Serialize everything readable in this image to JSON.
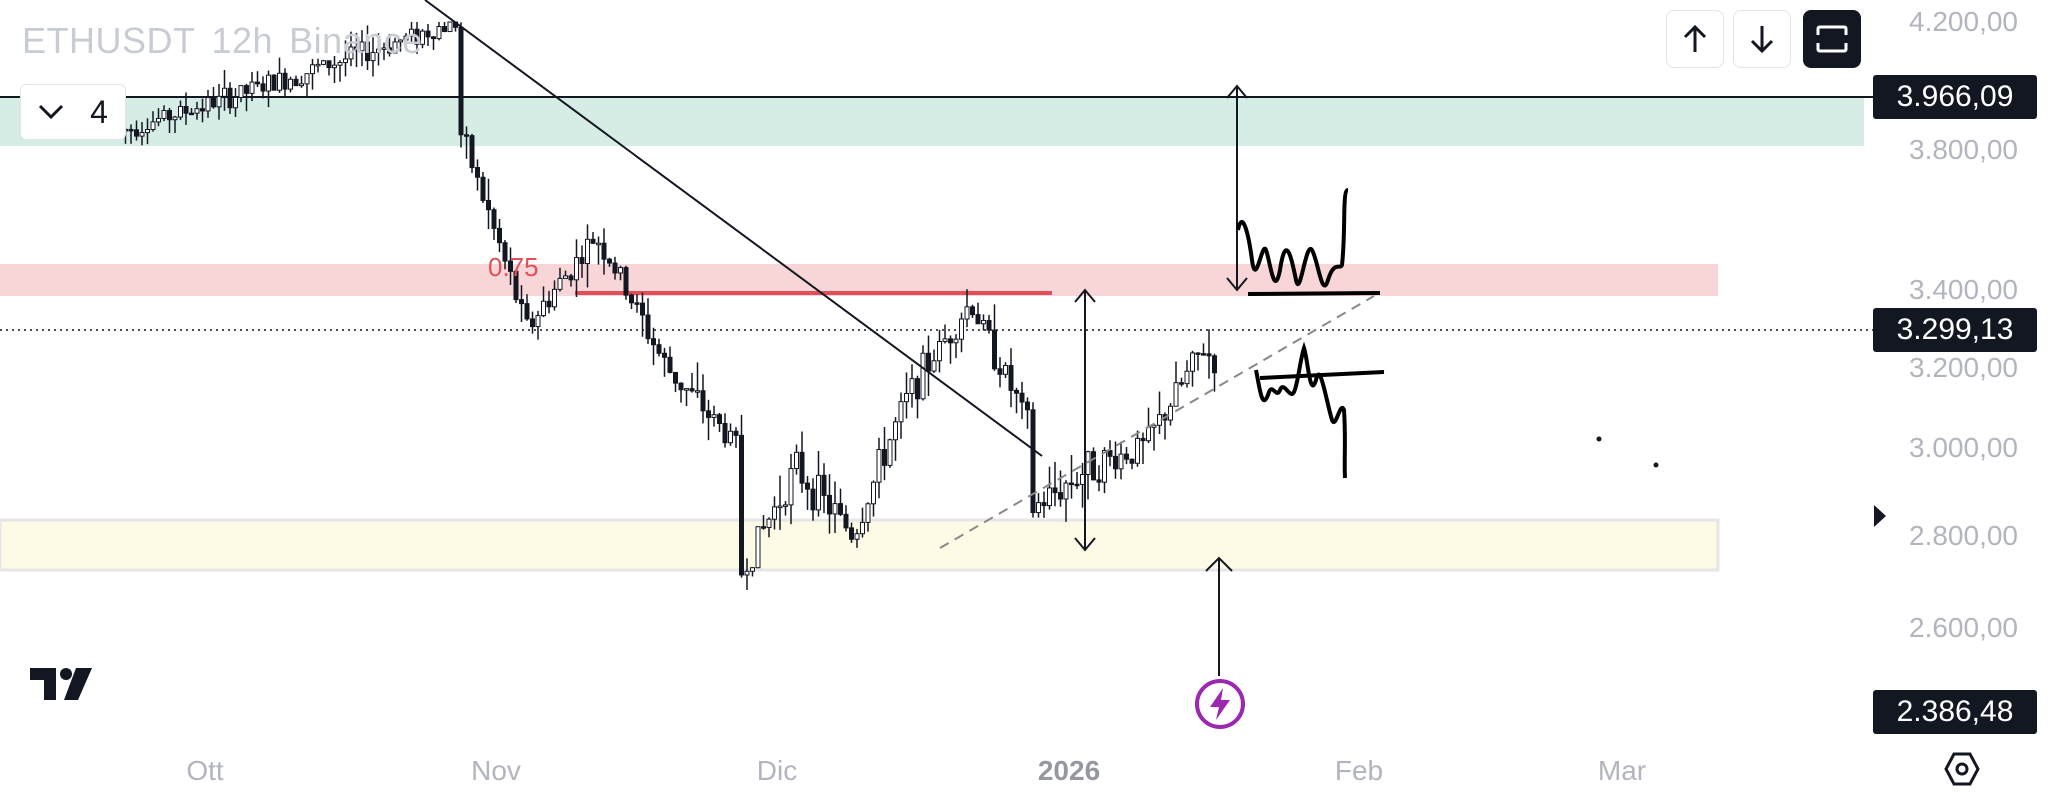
{
  "header": {
    "symbol": "ETHUSDT",
    "interval": "12h",
    "exchange": "Binance",
    "collapse_count": "4"
  },
  "toolbar": {
    "up_icon": "arrow-up-icon",
    "down_icon": "arrow-down-icon",
    "fullscreen_icon": "fullscreen-icon"
  },
  "price_axis": {
    "ticks": [
      "4.200,00",
      "3.800,00",
      "3.400,00",
      "3.200,00",
      "3.000,00",
      "2.800,00",
      "2.600,00"
    ],
    "badges": {
      "resistance": "3.966,09",
      "current": "3.299,13",
      "low": "2.386,48"
    }
  },
  "time_axis": {
    "labels": [
      "Ott",
      "Nov",
      "Dic",
      "2026",
      "Feb",
      "Mar"
    ]
  },
  "annotations": {
    "fib_label": "0.75"
  },
  "colors": {
    "candle": "#131722",
    "resistance_zone": "#d6ede6",
    "supply_zone": "#f8d5d7",
    "demand_zone": "#fdfbe6",
    "red_line": "#e04f5a",
    "lightning": "#9c27b0"
  },
  "chart_data": {
    "type": "candlestick",
    "symbol": "ETHUSDT",
    "interval": "12h",
    "x_labels": [
      "Ott",
      "Nov",
      "Dic",
      "2026",
      "Feb",
      "Mar"
    ],
    "ylim": [
      2386.48,
      4200
    ],
    "horizontal_lines": [
      3966.09,
      3299.13
    ],
    "zones": [
      {
        "name": "resistance",
        "from": 3800,
        "to": 3966.09
      },
      {
        "name": "supply",
        "from": 3400,
        "to": 3470
      },
      {
        "name": "demand",
        "from": 2740,
        "to": 2830
      }
    ],
    "path": [
      {
        "x": "Ott",
        "y": 3850
      },
      {
        "x": "Ott",
        "y": 4200
      },
      {
        "x": "Nov",
        "y": 3880
      },
      {
        "x": "Nov",
        "y": 3300
      },
      {
        "x": "Nov",
        "y": 3550
      },
      {
        "x": "Nov",
        "y": 3200
      },
      {
        "x": "Nov",
        "y": 3000
      },
      {
        "x": "Dic",
        "y": 2700
      },
      {
        "x": "Dic",
        "y": 2950
      },
      {
        "x": "Dic",
        "y": 2800
      },
      {
        "x": "Dic",
        "y": 3150
      },
      {
        "x": "Dic",
        "y": 3370
      },
      {
        "x": "Dic",
        "y": 3050
      },
      {
        "x": "2026",
        "y": 2850
      },
      {
        "x": "2026",
        "y": 2950
      },
      {
        "x": "2026",
        "y": 3000
      },
      {
        "x": "2026",
        "y": 3250
      },
      {
        "x": "2026",
        "y": 3080
      },
      {
        "x": "2026",
        "y": 3300
      }
    ]
  }
}
